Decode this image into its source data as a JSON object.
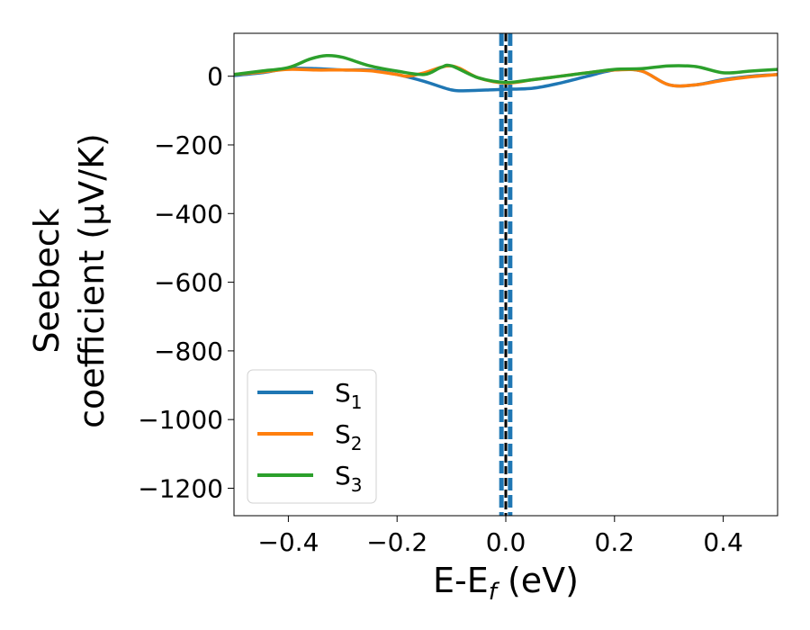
{
  "chart_data": {
    "type": "line",
    "xlabel_main": "E-E",
    "xlabel_sub": "f",
    "xlabel_unit": " (eV)",
    "ylabel_line1": "Seebeck",
    "ylabel_line2": "coefficient  (μV/K)",
    "xlim": [
      -0.5,
      0.5
    ],
    "ylim": [
      -1280,
      125
    ],
    "xticks": [
      -0.4,
      -0.2,
      0.0,
      0.2,
      0.4
    ],
    "xtick_labels": [
      "−0.4",
      "−0.2",
      "0.0",
      "0.2",
      "0.4"
    ],
    "yticks": [
      0,
      -200,
      -400,
      -600,
      -800,
      -1000,
      -1200
    ],
    "ytick_labels": [
      "0",
      "−200",
      "−400",
      "−600",
      "−800",
      "−1000",
      "−1200"
    ],
    "grid": false,
    "legend_position": "lower-left",
    "vlines": [
      {
        "x": -0.008,
        "style": "dashed",
        "color": "#1f77b4"
      },
      {
        "x": 0.008,
        "style": "dashed",
        "color": "#1f77b4"
      },
      {
        "x": 0.0,
        "style": "dashed",
        "color": "#000000"
      }
    ],
    "series": [
      {
        "name": "S",
        "subscript": "1",
        "color": "#1f77b4",
        "x": [
          -0.5,
          -0.45,
          -0.4,
          -0.35,
          -0.3,
          -0.25,
          -0.2,
          -0.15,
          -0.1,
          -0.07,
          -0.03,
          0.0,
          0.05,
          0.1,
          0.15,
          0.2,
          0.25,
          0.3,
          0.35,
          0.4,
          0.45,
          0.5
        ],
        "values": [
          2,
          10,
          22,
          22,
          18,
          18,
          5,
          -15,
          -40,
          -42,
          -40,
          -38,
          -35,
          -20,
          0,
          18,
          15,
          -25,
          -25,
          -10,
          0,
          5
        ]
      },
      {
        "name": "S",
        "subscript": "2",
        "color": "#ff7f0e",
        "x": [
          -0.5,
          -0.45,
          -0.4,
          -0.35,
          -0.3,
          -0.25,
          -0.2,
          -0.18,
          -0.15,
          -0.1,
          -0.05,
          0.0,
          0.05,
          0.1,
          0.15,
          0.2,
          0.25,
          0.3,
          0.35,
          0.4,
          0.45,
          0.5
        ],
        "values": [
          5,
          12,
          20,
          18,
          18,
          16,
          5,
          0,
          10,
          30,
          -5,
          -20,
          -10,
          0,
          10,
          18,
          15,
          -25,
          -25,
          -12,
          -2,
          5
        ]
      },
      {
        "name": "S",
        "subscript": "3",
        "color": "#2ca02c",
        "x": [
          -0.5,
          -0.45,
          -0.4,
          -0.36,
          -0.33,
          -0.3,
          -0.25,
          -0.2,
          -0.15,
          -0.12,
          -0.1,
          -0.05,
          0.0,
          0.05,
          0.1,
          0.15,
          0.2,
          0.25,
          0.3,
          0.35,
          0.4,
          0.45,
          0.5
        ],
        "values": [
          5,
          15,
          25,
          50,
          60,
          55,
          30,
          15,
          5,
          25,
          30,
          -5,
          -18,
          -10,
          0,
          10,
          20,
          22,
          30,
          28,
          10,
          15,
          20
        ]
      }
    ]
  }
}
